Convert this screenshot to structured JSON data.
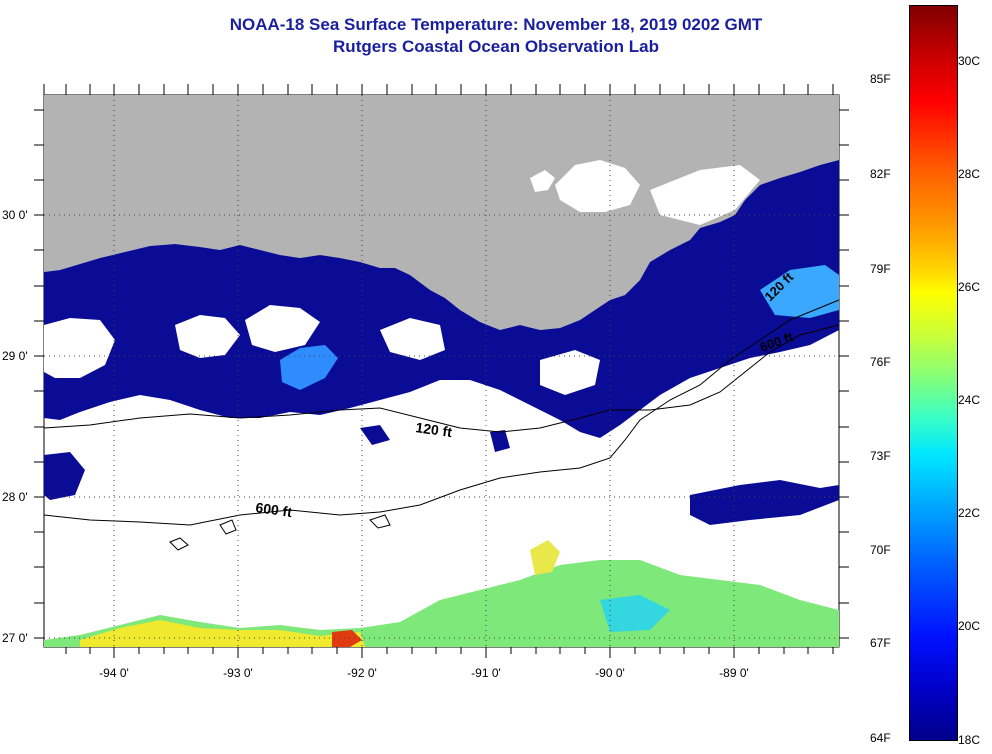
{
  "title": {
    "line1": "NOAA-18 Sea Surface Temperature:  November 18, 2019 0202 GMT",
    "line2": "Rutgers Coastal Ocean Observation Lab"
  },
  "map": {
    "lat_labels": [
      "30 0'",
      "29 0'",
      "28 0'",
      "27 0'"
    ],
    "lon_labels": [
      "-94 0'",
      "-93 0'",
      "-92 0'",
      "-91 0'",
      "-90 0'",
      "-89 0'"
    ],
    "contour_labels": [
      "120 ft",
      "600 ft",
      "120 ft",
      "600 ft"
    ],
    "colors": {
      "land": "#b3b3b3",
      "cloud": "#ffffff",
      "cold_water": "#0a0c96"
    }
  },
  "colorbar": {
    "fahrenheit_labels": [
      "85F",
      "82F",
      "79F",
      "76F",
      "73F",
      "70F",
      "67F",
      "64F"
    ],
    "celsius_labels": [
      "30C",
      "28C",
      "26C",
      "24C",
      "22C",
      "20C",
      "18C"
    ]
  }
}
